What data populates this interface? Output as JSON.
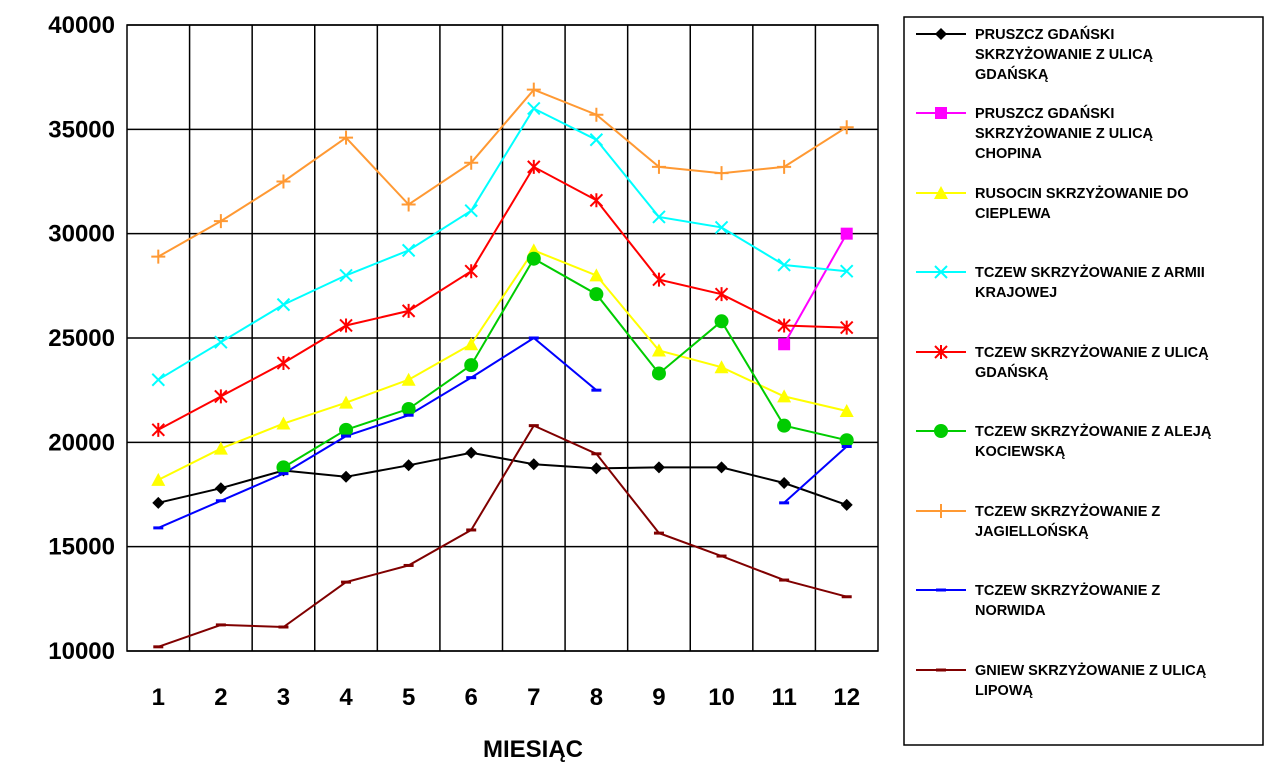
{
  "chart_data": {
    "type": "line",
    "title": "",
    "xlabel": "MIESIĄC",
    "ylabel": "",
    "categories": [
      "1",
      "2",
      "3",
      "4",
      "5",
      "6",
      "7",
      "8",
      "9",
      "10",
      "11",
      "12"
    ],
    "ylim": [
      10000,
      40000
    ],
    "yticks": [
      10000,
      15000,
      20000,
      25000,
      30000,
      35000,
      40000
    ],
    "grid": true,
    "legend_position": "right",
    "series": [
      {
        "name": "PRUSZCZ GDAŃSKI SKRZYŻOWANIE Z ULICĄ GDAŃSKĄ",
        "legend_lines": [
          "PRUSZCZ GDAŃSKI",
          "SKRZYŻOWANIE Z ULICĄ",
          "GDAŃSKĄ"
        ],
        "color": "#000000",
        "marker": "diamond",
        "values": [
          17100,
          17800,
          18650,
          18350,
          18900,
          19500,
          18950,
          18750,
          18800,
          18800,
          18050,
          17000
        ]
      },
      {
        "name": "PRUSZCZ GDAŃSKI SKRZYŻOWANIE Z ULICĄ CHOPINA",
        "legend_lines": [
          "PRUSZCZ GDAŃSKI",
          "SKRZYŻOWANIE Z ULICĄ",
          "CHOPINA"
        ],
        "color": "#ff00ff",
        "marker": "square",
        "values": [
          null,
          null,
          null,
          null,
          null,
          null,
          null,
          null,
          null,
          null,
          24700,
          30000
        ]
      },
      {
        "name": "RUSOCIN SKRZYŻOWANIE DO CIEPLEWA",
        "legend_lines": [
          "RUSOCIN SKRZYŻOWANIE DO",
          "CIEPLEWA"
        ],
        "color": "#ffff00",
        "marker": "triangle",
        "values": [
          18200,
          19700,
          20900,
          21900,
          23000,
          24700,
          29200,
          28000,
          24400,
          23600,
          22200,
          21500
        ]
      },
      {
        "name": "TCZEW SKRZYŻOWANIE Z ARMII KRAJOWEJ",
        "legend_lines": [
          "TCZEW SKRZYŻOWANIE Z ARMII",
          "KRAJOWEJ"
        ],
        "color": "#00ffff",
        "marker": "x",
        "values": [
          23000,
          24800,
          26600,
          28000,
          29200,
          31100,
          36000,
          34500,
          30800,
          30300,
          28500,
          28200
        ]
      },
      {
        "name": "TCZEW SKRZYŻOWANIE Z ULICĄ GDAŃSKĄ",
        "legend_lines": [
          "TCZEW SKRZYŻOWANIE Z ULICĄ",
          "GDAŃSKĄ"
        ],
        "color": "#ff0000",
        "marker": "star",
        "values": [
          20600,
          22200,
          23800,
          25600,
          26300,
          28200,
          33200,
          31600,
          27800,
          27100,
          25600,
          25500
        ]
      },
      {
        "name": "TCZEW SKRZYŻOWANIE Z ALEJĄ KOCIEWSKĄ",
        "legend_lines": [
          "TCZEW SKRZYŻOWANIE Z ALEJĄ",
          "KOCIEWSKĄ"
        ],
        "color": "#00cc00",
        "marker": "circle",
        "values": [
          null,
          null,
          18800,
          20600,
          21600,
          23700,
          28800,
          27100,
          23300,
          25800,
          20800,
          20100
        ]
      },
      {
        "name": "TCZEW SKRZYŻOWANIE Z JAGIELLOŃSKĄ",
        "legend_lines": [
          "TCZEW SKRZYŻOWANIE Z",
          "JAGIELLOŃSKĄ"
        ],
        "color": "#ff9933",
        "marker": "plus",
        "values": [
          28900,
          30600,
          32500,
          34600,
          31400,
          33400,
          36900,
          35700,
          33200,
          32900,
          33200,
          35100
        ]
      },
      {
        "name": "TCZEW SKRZYŻOWANIE Z NORWIDA",
        "legend_lines": [
          "TCZEW SKRZYŻOWANIE Z",
          "NORWIDA"
        ],
        "color": "#0000ff",
        "marker": "dash",
        "values": [
          15900,
          17200,
          18500,
          20300,
          21300,
          23100,
          25000,
          22500,
          null,
          null,
          17100,
          19800
        ]
      },
      {
        "name": "GNIEW SKRZYŻOWANIE Z ULICĄ LIPOWĄ",
        "legend_lines": [
          "GNIEW SKRZYŻOWANIE Z ULICĄ",
          "LIPOWĄ"
        ],
        "color": "#800000",
        "marker": "dash",
        "values": [
          10200,
          11250,
          11150,
          13300,
          14100,
          15800,
          20800,
          19450,
          15650,
          14550,
          13400,
          12600
        ]
      }
    ]
  }
}
